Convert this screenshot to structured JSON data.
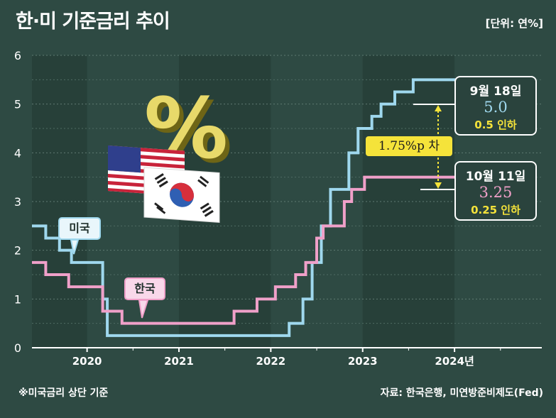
{
  "title": "한·미 기준금리 추이",
  "unit": "[단위: 연%]",
  "footnote": "※미국금리 상단 기준",
  "source": "자료: 한국은행, 미연방준비제도(Fed)",
  "colors": {
    "background": "#2e4a43",
    "us_line": "#9fd8ee",
    "kr_line": "#f0a0c9",
    "accent_yellow": "#f5e33a"
  },
  "series_labels": {
    "us": "미국",
    "kr": "한국"
  },
  "us_box": {
    "date": "9월 18일",
    "rate": "5.0",
    "change": "0.5 인하"
  },
  "kr_box": {
    "date": "10월 11일",
    "rate": "3.25",
    "change": "0.25 인하"
  },
  "gap_label": "1.75%p 차",
  "percent_symbol": "%",
  "chart_data": {
    "type": "line",
    "title": "한·미 기준금리 추이",
    "ylabel": "연%",
    "xlabel": "",
    "ylim": [
      0,
      6
    ],
    "xlim": [
      2019.4,
      2024.95
    ],
    "yticks": [
      "0",
      "1",
      "2",
      "3",
      "4",
      "5",
      "6"
    ],
    "xticks": [
      {
        "label": "2020",
        "x": 2020.0
      },
      {
        "label": "2021",
        "x": 2021.0
      },
      {
        "label": "2022",
        "x": 2022.0
      },
      {
        "label": "2023",
        "x": 2023.0
      },
      {
        "label": "2024년",
        "x": 2024.0
      }
    ],
    "grid": true,
    "series": [
      {
        "name": "미국",
        "step": true,
        "points": [
          [
            2019.4,
            2.5
          ],
          [
            2019.55,
            2.25
          ],
          [
            2019.7,
            2.0
          ],
          [
            2019.83,
            1.75
          ],
          [
            2020.17,
            1.0
          ],
          [
            2020.22,
            0.25
          ],
          [
            2022.2,
            0.5
          ],
          [
            2022.35,
            1.0
          ],
          [
            2022.45,
            1.75
          ],
          [
            2022.55,
            2.5
          ],
          [
            2022.65,
            3.25
          ],
          [
            2022.85,
            4.0
          ],
          [
            2022.95,
            4.5
          ],
          [
            2023.1,
            4.75
          ],
          [
            2023.2,
            5.0
          ],
          [
            2023.35,
            5.25
          ],
          [
            2023.55,
            5.5
          ],
          [
            2024.7,
            5.0
          ]
        ],
        "end": 2024.7
      },
      {
        "name": "한국",
        "step": true,
        "points": [
          [
            2019.4,
            1.75
          ],
          [
            2019.55,
            1.5
          ],
          [
            2019.8,
            1.25
          ],
          [
            2020.17,
            0.75
          ],
          [
            2020.38,
            0.5
          ],
          [
            2021.6,
            0.75
          ],
          [
            2021.85,
            1.0
          ],
          [
            2022.05,
            1.25
          ],
          [
            2022.27,
            1.5
          ],
          [
            2022.38,
            1.75
          ],
          [
            2022.5,
            2.25
          ],
          [
            2022.57,
            2.5
          ],
          [
            2022.8,
            3.0
          ],
          [
            2022.88,
            3.25
          ],
          [
            2023.02,
            3.5
          ],
          [
            2024.78,
            3.25
          ]
        ],
        "end": 2024.78
      }
    ],
    "annotations": [
      {
        "series": "미국",
        "x": 2024.7,
        "y": 5.0,
        "text": "9월 18일 5.0 0.5 인하"
      },
      {
        "series": "한국",
        "x": 2024.78,
        "y": 3.25,
        "text": "10월 11일 3.25 0.25 인하"
      },
      {
        "text": "1.75%p 차"
      }
    ]
  }
}
